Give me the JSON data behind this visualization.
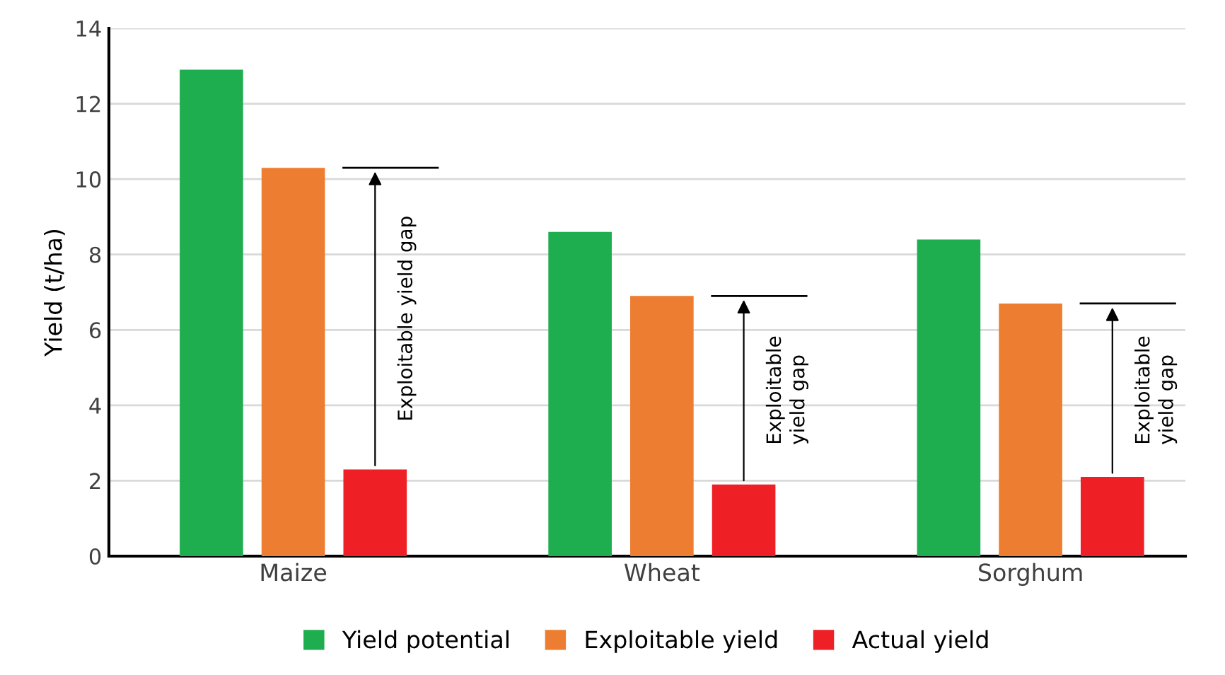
{
  "chart_data": {
    "type": "bar",
    "ylabel": "Yield (t/ha)",
    "categories": [
      "Maize",
      "Wheat",
      "Sorghum"
    ],
    "series": [
      {
        "name": "Yield potential",
        "color": "#1fae4f",
        "values": [
          12.9,
          8.6,
          8.4
        ]
      },
      {
        "name": "Exploitable yield",
        "color": "#ed7d31",
        "values": [
          10.3,
          6.9,
          6.7
        ]
      },
      {
        "name": "Actual yield",
        "color": "#ee1f25",
        "values": [
          2.3,
          1.9,
          2.1
        ]
      }
    ],
    "ylim": [
      0,
      14
    ],
    "yticks": [
      0,
      2,
      4,
      6,
      8,
      10,
      12,
      14
    ],
    "grid": "y",
    "legend": "bottom",
    "annotations": [
      "Exploitable yield gap",
      "Exploitable\nyield gap",
      "Exploitable\nyield gap"
    ]
  }
}
